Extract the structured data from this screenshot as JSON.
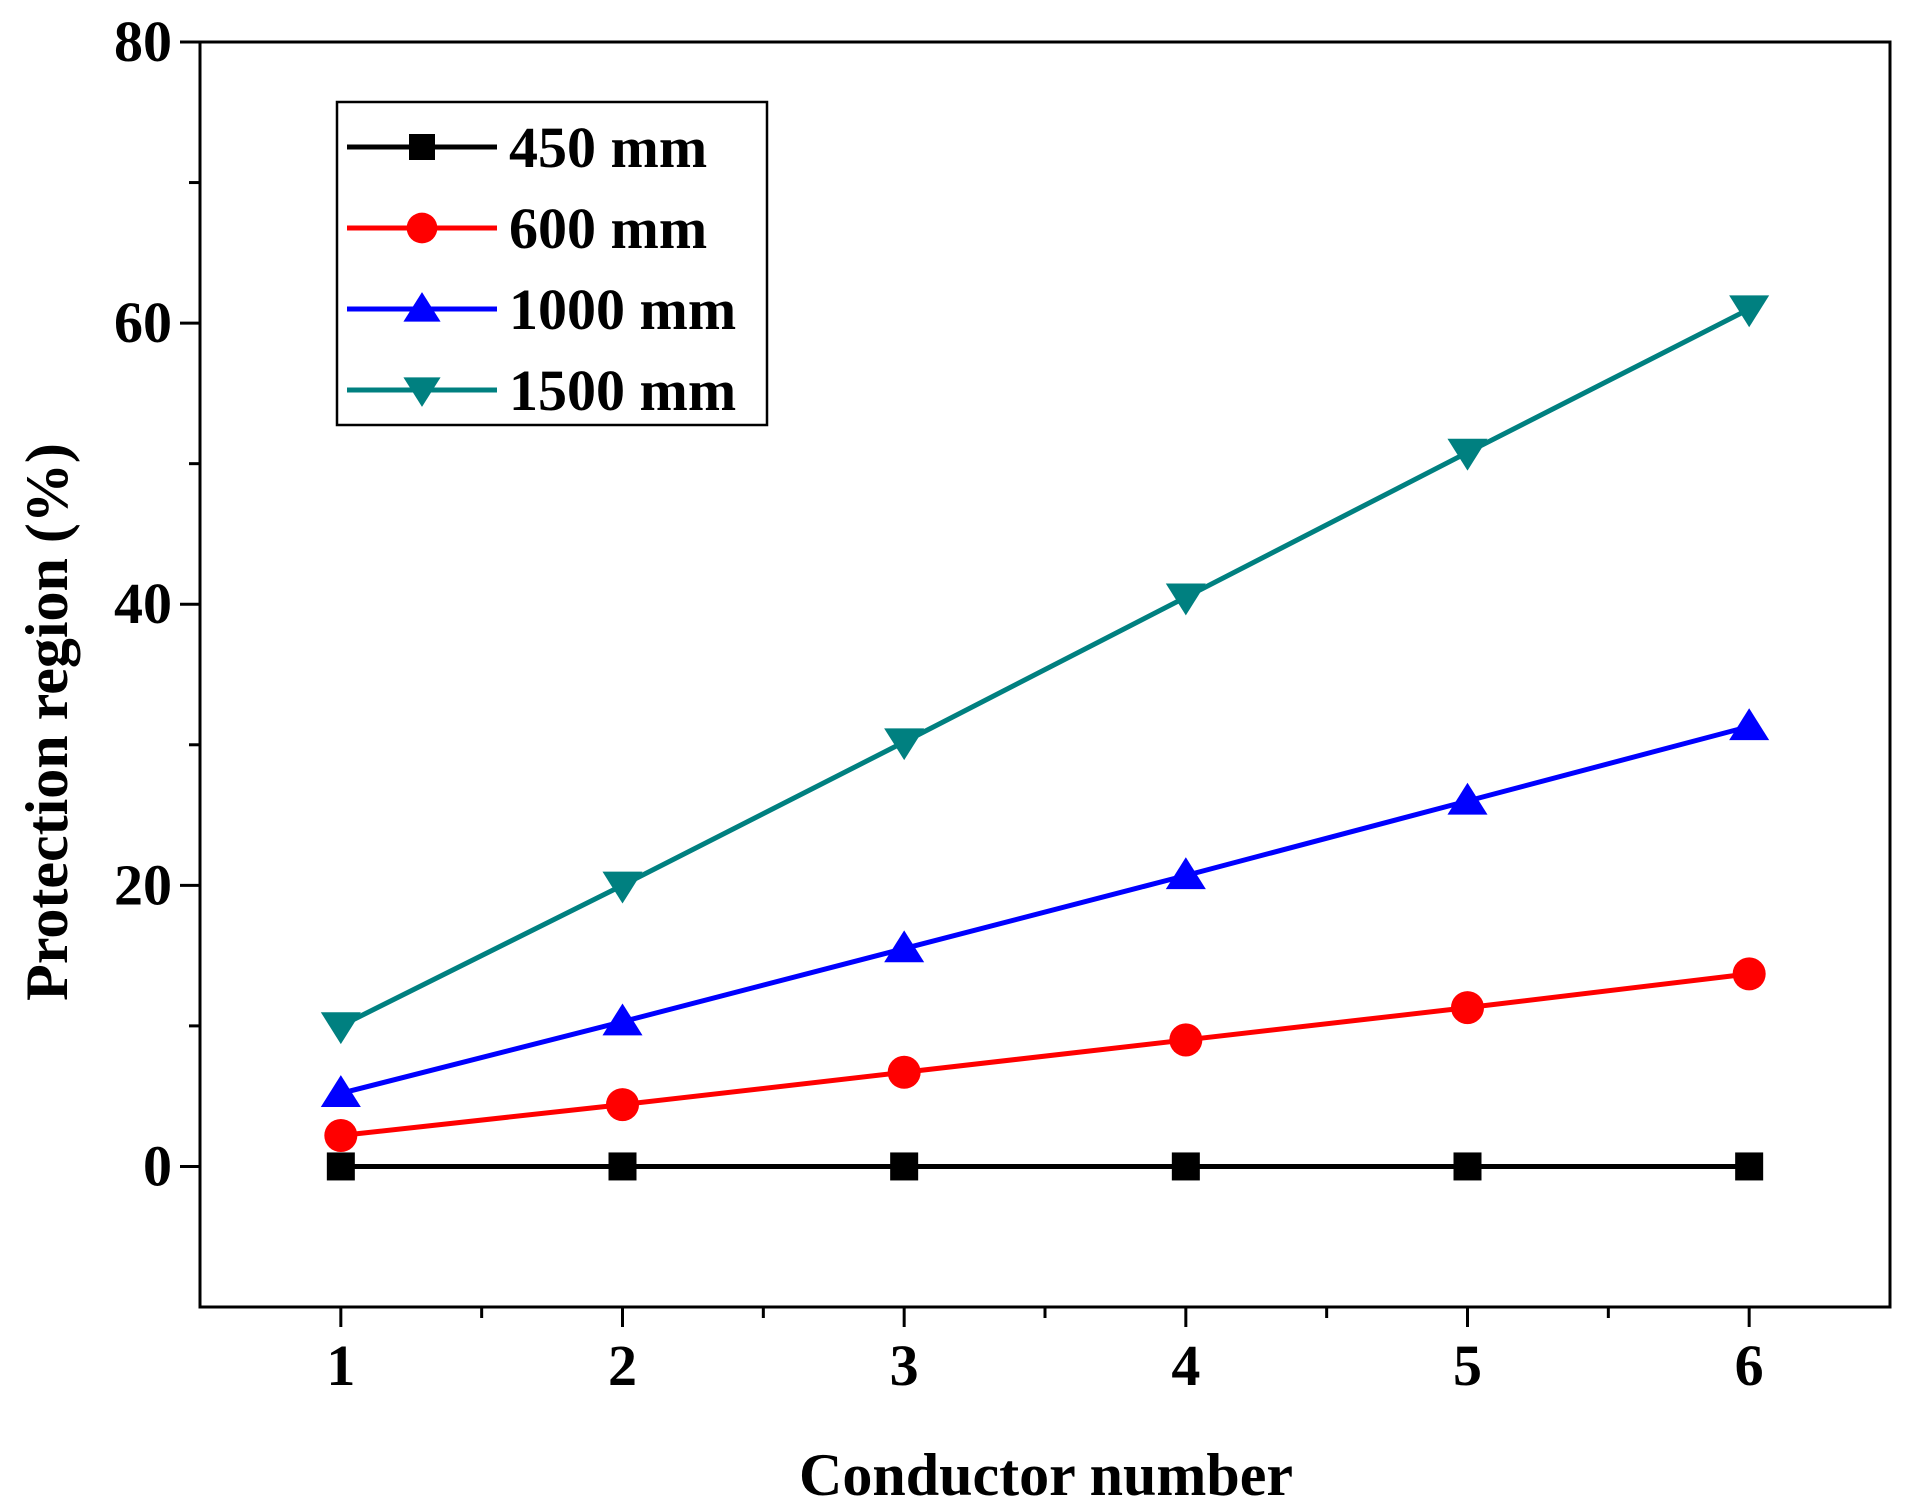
{
  "chart_data": {
    "type": "line",
    "title": "",
    "xlabel": "Conductor number",
    "ylabel": "Protection region (%)",
    "x": [
      1,
      2,
      3,
      4,
      5,
      6
    ],
    "xlim": [
      0.5,
      6.5
    ],
    "ylim": [
      -10,
      80
    ],
    "xticks": [
      1,
      2,
      3,
      4,
      5,
      6
    ],
    "yticks": [
      0,
      20,
      40,
      60,
      80
    ],
    "grid": false,
    "legend_position": "top-left",
    "series": [
      {
        "name": "450 mm",
        "color": "#000000",
        "marker": "square",
        "values": [
          0,
          0,
          0,
          0,
          0,
          0
        ]
      },
      {
        "name": "600 mm",
        "color": "#ff0000",
        "marker": "circle",
        "values": [
          2.2,
          4.4,
          6.7,
          9.0,
          11.3,
          13.7
        ]
      },
      {
        "name": "1000 mm",
        "color": "#0000ff",
        "marker": "triangle-up",
        "values": [
          5.2,
          10.3,
          15.5,
          20.7,
          26.0,
          31.3
        ]
      },
      {
        "name": "1500 mm",
        "color": "#008080",
        "marker": "triangle-down",
        "values": [
          10.0,
          20.0,
          30.2,
          40.5,
          50.8,
          61.0
        ]
      }
    ]
  }
}
